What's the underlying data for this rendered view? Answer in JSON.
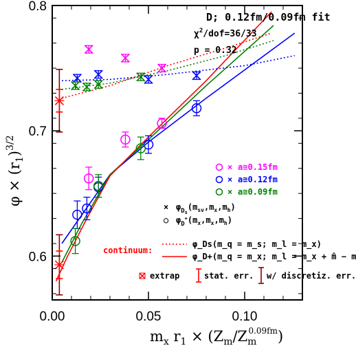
{
  "chart_data": {
    "type": "scatter",
    "xlim": [
      0.0,
      0.13
    ],
    "ylim": [
      0.565,
      0.8
    ],
    "x_ticks": [
      0.0,
      0.05,
      0.1
    ],
    "x_tick_labels": [
      "0.00",
      "0.05",
      "0.10"
    ],
    "y_ticks": [
      0.6,
      0.7,
      0.8
    ],
    "y_tick_labels": [
      "0.6",
      "0.7",
      "0.8"
    ],
    "xlabel": {
      "main": "m",
      "sub1": "x",
      "mid": " r",
      "sub2": "1",
      "tail": " × (Z",
      "sub3": "m",
      "slash": "/Z",
      "sub4": "m",
      "sup4": "0.09fm",
      "close": ")"
    },
    "ylabel": {
      "main": "φ × (r",
      "sub": "1",
      "close": ")",
      "sup": "3/2"
    },
    "annotation": {
      "title": "D;   0.12fm/0.09fm fit",
      "chi_lhs": "χ",
      "chi_sup": "2",
      "chi_rhs": "/dof=36/33",
      "p": "p = 0.32"
    },
    "colors": {
      "a015": "#ff00ff",
      "a012": "#0000ff",
      "a009": "#008000",
      "continuum": "#ff0000",
      "discretiz": "#8b0000"
    },
    "legend": {
      "lattice": [
        {
          "label": "a≅0.15fm",
          "color": "#ff00ff"
        },
        {
          "label": "a≅0.12fm",
          "color": "#0000ff"
        },
        {
          "label": "a≅0.09fm",
          "color": "#008000"
        }
      ],
      "markers": [
        {
          "marker": "×",
          "text": "φ",
          "sub": "D",
          "subsub": "s",
          "args": "(m",
          "argsub": "sv",
          "rest": ",m",
          "restsub": "x",
          "rest2": ",m",
          "rest2sub": "h",
          "end": ")"
        },
        {
          "marker": "○",
          "text": "φ",
          "sub": "D",
          "subsup": "+",
          "args": "(m",
          "argsub": "x",
          "rest": ",m",
          "restsub": "x",
          "rest2": ",m",
          "rest2sub": "h",
          "end": ")"
        }
      ],
      "continuum_label": "continuum:",
      "continuum_dotted": "φ_Ds(m_q = m_s;  m_l = m_x)",
      "continuum_solid": "φ_D+(m_q = m_x;  m_l = m_x + m̂ − m_d)",
      "extrap": "extrap",
      "stat_err": "stat. err.",
      "discretiz_err": "w/ discretiz. err."
    },
    "series": [
      {
        "name": "a≅0.15fm",
        "marker": "circle",
        "color": "#ff00ff",
        "points": [
          [
            0.019,
            0.662,
            0.009
          ],
          [
            0.038,
            0.693,
            0.006
          ],
          [
            0.057,
            0.706,
            0.004
          ]
        ]
      },
      {
        "name": "a≅0.15fm",
        "marker": "x",
        "color": "#ff00ff",
        "points": [
          [
            0.019,
            0.765,
            0.003
          ],
          [
            0.038,
            0.758,
            0.003
          ],
          [
            0.057,
            0.75,
            0.003
          ]
        ]
      },
      {
        "name": "a≅0.12fm",
        "marker": "circle",
        "color": "#0000ff",
        "points": [
          [
            0.013,
            0.633,
            0.011
          ],
          [
            0.018,
            0.638,
            0.009
          ],
          [
            0.024,
            0.655,
            0.008
          ],
          [
            0.05,
            0.689,
            0.007
          ],
          [
            0.075,
            0.718,
            0.006
          ]
        ]
      },
      {
        "name": "a≅0.12fm",
        "marker": "x",
        "color": "#0000ff",
        "points": [
          [
            0.013,
            0.742,
            0.003
          ],
          [
            0.024,
            0.745,
            0.003
          ],
          [
            0.05,
            0.741,
            0.003
          ],
          [
            0.075,
            0.744,
            0.003
          ]
        ]
      },
      {
        "name": "a≅0.09fm",
        "marker": "circle",
        "color": "#008000",
        "points": [
          [
            0.012,
            0.612,
            0.01
          ],
          [
            0.024,
            0.656,
            0.009
          ],
          [
            0.046,
            0.686,
            0.009
          ]
        ]
      },
      {
        "name": "a≅0.09fm",
        "marker": "x",
        "color": "#008000",
        "points": [
          [
            0.012,
            0.736,
            0.003
          ],
          [
            0.018,
            0.735,
            0.003
          ],
          [
            0.024,
            0.737,
            0.003
          ],
          [
            0.046,
            0.743,
            0.003
          ]
        ]
      }
    ],
    "fit_lines": [
      {
        "color": "#0000ff",
        "style": "solid",
        "points": [
          [
            0.005,
            0.61
          ],
          [
            0.015,
            0.632
          ],
          [
            0.03,
            0.665
          ],
          [
            0.05,
            0.691
          ],
          [
            0.08,
            0.726
          ],
          [
            0.126,
            0.778
          ]
        ]
      },
      {
        "color": "#008000",
        "style": "solid",
        "points": [
          [
            0.005,
            0.595
          ],
          [
            0.015,
            0.625
          ],
          [
            0.03,
            0.665
          ],
          [
            0.05,
            0.693
          ],
          [
            0.08,
            0.736
          ],
          [
            0.115,
            0.784
          ]
        ]
      },
      {
        "color": "#ff0000",
        "style": "solid",
        "points": [
          [
            0.002,
            0.58
          ],
          [
            0.008,
            0.6
          ],
          [
            0.018,
            0.63
          ],
          [
            0.03,
            0.664
          ],
          [
            0.05,
            0.695
          ],
          [
            0.08,
            0.74
          ],
          [
            0.114,
            0.795
          ]
        ]
      },
      {
        "color": "#0000ff",
        "style": "dotted",
        "points": [
          [
            0.005,
            0.74
          ],
          [
            0.03,
            0.741
          ],
          [
            0.06,
            0.745
          ],
          [
            0.1,
            0.752
          ],
          [
            0.126,
            0.76
          ]
        ]
      },
      {
        "color": "#008000",
        "style": "dotted",
        "points": [
          [
            0.005,
            0.733
          ],
          [
            0.03,
            0.738
          ],
          [
            0.06,
            0.748
          ],
          [
            0.09,
            0.76
          ],
          [
            0.115,
            0.772
          ]
        ]
      },
      {
        "color": "#ff0000",
        "style": "dotted",
        "points": [
          [
            0.005,
            0.726
          ],
          [
            0.03,
            0.736
          ],
          [
            0.06,
            0.752
          ],
          [
            0.09,
            0.766
          ],
          [
            0.114,
            0.778
          ]
        ]
      }
    ],
    "extrapolated": {
      "x": 0.0037,
      "y": 0.724,
      "stat_err": 0.009,
      "total_err": 0.025
    },
    "extrapolated_plus": {
      "x": 0.0037,
      "y": 0.593,
      "stat_err": 0.011,
      "total_err": 0.024
    }
  }
}
